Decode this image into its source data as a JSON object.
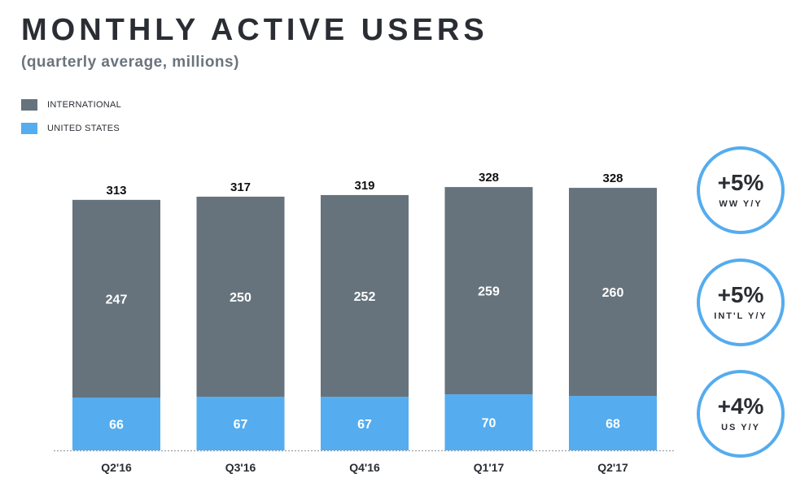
{
  "header": {
    "title": "MONTHLY ACTIVE USERS",
    "subtitle": "(quarterly average, millions)"
  },
  "legend": [
    {
      "label": "INTERNATIONAL",
      "color": "#66737d"
    },
    {
      "label": "UNITED STATES",
      "color": "#55acee"
    }
  ],
  "chart_data": {
    "type": "bar",
    "stacked": true,
    "title": "MONTHLY ACTIVE USERS",
    "subtitle": "(quarterly average, millions)",
    "categories": [
      "Q2'16",
      "Q3'16",
      "Q4'16",
      "Q1'17",
      "Q2'17"
    ],
    "series": [
      {
        "name": "UNITED STATES",
        "color": "#55acee",
        "values": [
          66,
          67,
          67,
          70,
          68
        ]
      },
      {
        "name": "INTERNATIONAL",
        "color": "#66737d",
        "values": [
          247,
          250,
          252,
          259,
          260
        ]
      }
    ],
    "totals": [
      313,
      317,
      319,
      328,
      328
    ],
    "ylim": [
      0,
      328
    ],
    "grid": false,
    "legend_position": "top-left"
  },
  "badges": [
    {
      "value": "+5%",
      "label": "WW Y/Y"
    },
    {
      "value": "+5%",
      "label": "INT'L Y/Y"
    },
    {
      "value": "+4%",
      "label": "US Y/Y"
    }
  ],
  "colors": {
    "international": "#66737d",
    "united_states": "#55acee",
    "badge_ring": "#55acee",
    "text_dark": "#2a2d33"
  }
}
